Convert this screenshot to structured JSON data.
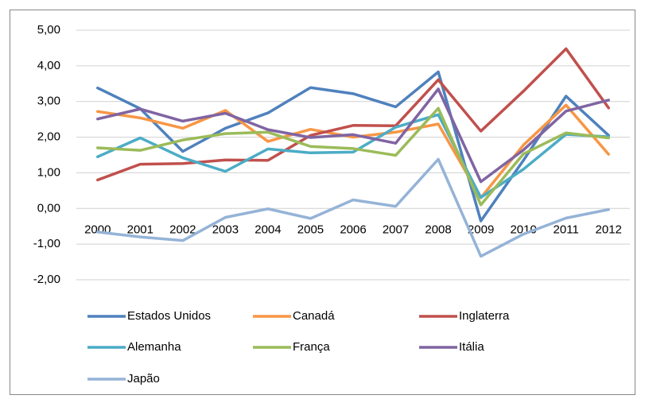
{
  "chart_data": {
    "type": "line",
    "categories": [
      "2000",
      "2001",
      "2002",
      "2003",
      "2004",
      "2005",
      "2006",
      "2007",
      "2008",
      "2009",
      "2010",
      "2011",
      "2012"
    ],
    "series": [
      {
        "name": "Estados Unidos",
        "color": "#4f81bd",
        "values": [
          3.38,
          2.8,
          1.6,
          2.25,
          2.68,
          3.39,
          3.22,
          2.85,
          3.83,
          -0.35,
          1.35,
          3.15,
          2.05
        ]
      },
      {
        "name": "Canadá",
        "color": "#f79646",
        "values": [
          2.72,
          2.54,
          2.25,
          2.75,
          1.88,
          2.22,
          2.0,
          2.14,
          2.37,
          0.3,
          1.78,
          2.9,
          1.52
        ]
      },
      {
        "name": "Inglaterra",
        "color": "#c0504d",
        "values": [
          0.8,
          1.24,
          1.26,
          1.36,
          1.35,
          2.05,
          2.33,
          2.32,
          3.61,
          2.17,
          3.29,
          4.48,
          2.82
        ]
      },
      {
        "name": "Alemanha",
        "color": "#4bacc6",
        "values": [
          1.45,
          1.98,
          1.42,
          1.04,
          1.67,
          1.56,
          1.58,
          2.28,
          2.63,
          0.31,
          1.1,
          2.08,
          2.01
        ]
      },
      {
        "name": "França",
        "color": "#9bbb59",
        "values": [
          1.7,
          1.63,
          1.92,
          2.1,
          2.14,
          1.74,
          1.68,
          1.49,
          2.81,
          0.1,
          1.53,
          2.12,
          1.98
        ]
      },
      {
        "name": "Itália",
        "color": "#8064a2",
        "values": [
          2.51,
          2.79,
          2.45,
          2.67,
          2.21,
          1.99,
          2.07,
          1.83,
          3.35,
          0.75,
          1.64,
          2.73,
          3.04
        ]
      },
      {
        "name": "Japão",
        "color": "#95b3d7",
        "values": [
          -0.66,
          -0.8,
          -0.9,
          -0.25,
          -0.01,
          -0.28,
          0.24,
          0.06,
          1.38,
          -1.34,
          -0.72,
          -0.27,
          -0.03
        ]
      }
    ],
    "ylim": [
      -2,
      5
    ],
    "yticks": [
      {
        "value": -2,
        "label": "-2,00"
      },
      {
        "value": -1,
        "label": "-1,00"
      },
      {
        "value": 0,
        "label": "0,00"
      },
      {
        "value": 1,
        "label": "1,00"
      },
      {
        "value": 2,
        "label": "2,00"
      },
      {
        "value": 3,
        "label": "3,00"
      },
      {
        "value": 4,
        "label": "4,00"
      },
      {
        "value": 5,
        "label": "5,00"
      }
    ],
    "grid": true,
    "legend": "bottom"
  }
}
